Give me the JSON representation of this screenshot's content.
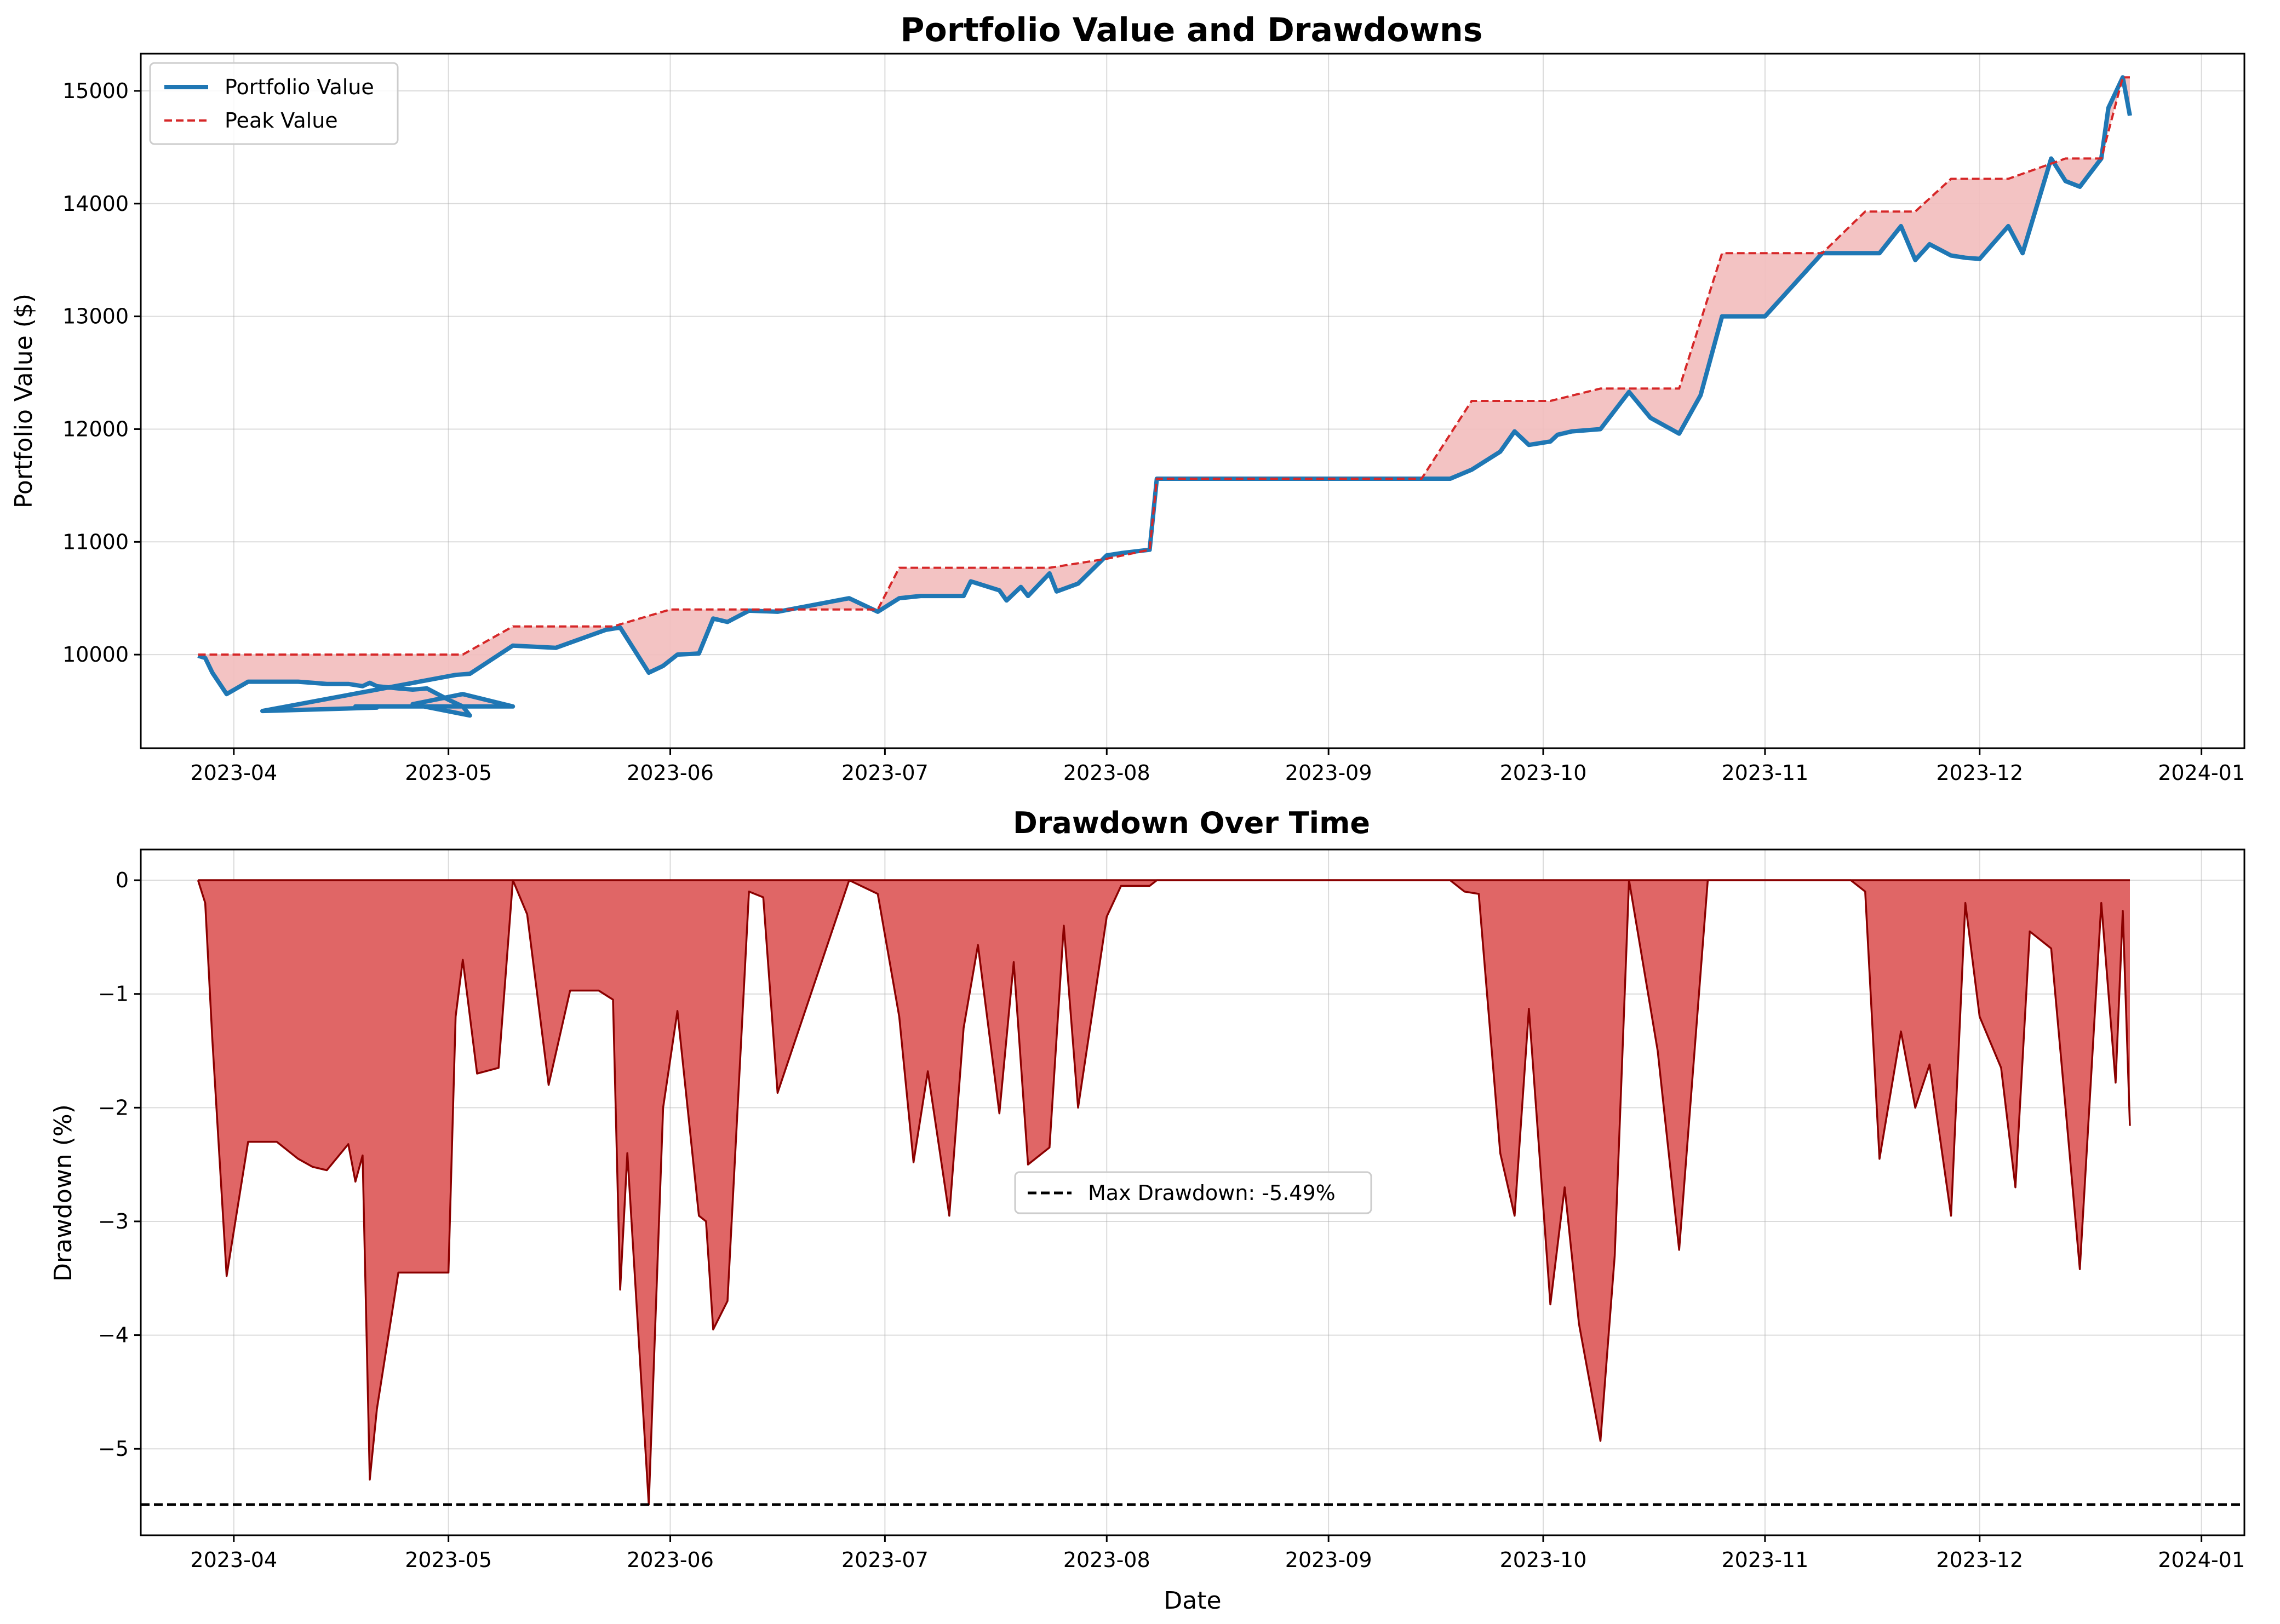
{
  "chart_data": [
    {
      "type": "line",
      "title": "Portfolio Value and Drawdowns",
      "xlabel": "",
      "ylabel": "Portfolio Value ($)",
      "x_ticks": [
        "2023-04",
        "2023-05",
        "2023-06",
        "2023-07",
        "2023-08",
        "2023-09",
        "2023-10",
        "2023-11",
        "2023-12",
        "2024-01"
      ],
      "y_ticks": [
        "10000",
        "11000",
        "12000",
        "13000",
        "14000",
        "15000"
      ],
      "xlim": [
        "2023-03-19",
        "2024-01-07"
      ],
      "ylim": [
        9170,
        15330
      ],
      "grid": true,
      "legend_position": "top-left",
      "legend": [
        "Portfolio Value",
        "Peak Value"
      ],
      "colors": {
        "portfolio": "#1f77b4",
        "peak": "#d62728",
        "fill": "#f2bcbc"
      },
      "series": [
        {
          "name": "Portfolio Value",
          "x": [
            "2023-03-27",
            "2023-03-28",
            "2023-03-29",
            "2023-03-31",
            "2023-04-03",
            "2023-04-05",
            "2023-04-07",
            "2023-04-10",
            "2023-04-12",
            "2023-04-14",
            "2023-04-17",
            "2023-04-18",
            "2023-04-19",
            "2023-04-20",
            "2023-04-21",
            "2023-04-24",
            "2023-04-26",
            "2023-04-28",
            "2023-05-01",
            "2023-05-03",
            "2023-05-04",
            "2023-04-26",
            "2023-05-03",
            "2023-05-10",
            "2023-04-18",
            "2023-04-21",
            "2023-04-05",
            "2023-05-02",
            "2023-05-04",
            "2023-05-10",
            "2023-05-16",
            "2023-05-23",
            "2023-05-25",
            "2023-05-29",
            "2023-05-31",
            "2023-06-02",
            "2023-06-05",
            "2023-06-07",
            "2023-06-09",
            "2023-06-12",
            "2023-06-16",
            "2023-06-26",
            "2023-06-30",
            "2023-07-03",
            "2023-07-06",
            "2023-07-10",
            "2023-07-12",
            "2023-07-13",
            "2023-07-17",
            "2023-07-18",
            "2023-07-20",
            "2023-07-21",
            "2023-07-24",
            "2023-07-25",
            "2023-07-28",
            "2023-08-01",
            "2023-08-03",
            "2023-08-07",
            "2023-08-08",
            "2023-08-17",
            "2023-08-24",
            "2023-09-07",
            "2023-09-14",
            "2023-09-18",
            "2023-09-21",
            "2023-09-25",
            "2023-09-27",
            "2023-09-28",
            "2023-09-29",
            "2023-10-02",
            "2023-10-03",
            "2023-10-05",
            "2023-10-09",
            "2023-10-13",
            "2023-10-16",
            "2023-10-20",
            "2023-10-23",
            "2023-10-26",
            "2023-11-01",
            "2023-11-09",
            "2023-11-13",
            "2023-11-15",
            "2023-11-17",
            "2023-11-20",
            "2023-11-22",
            "2023-11-24",
            "2023-11-27",
            "2023-11-29",
            "2023-12-01",
            "2023-12-05",
            "2023-12-07",
            "2023-12-11",
            "2023-12-13",
            "2023-12-15",
            "2023-12-18",
            "2023-12-19",
            "2023-12-21",
            "2023-12-22"
          ],
          "values": [
            9990,
            9970,
            9840,
            9650,
            9760,
            9760,
            9760,
            9760,
            9750,
            9740,
            9740,
            9730,
            9720,
            9750,
            9720,
            9700,
            9690,
            9700,
            9600,
            9540,
            9460,
            9560,
            9650,
            9540,
            9540,
            9530,
            9500,
            9820,
            9830,
            10080,
            10060,
            10220,
            10240,
            9840,
            9900,
            10000,
            10010,
            10320,
            10290,
            10390,
            10380,
            10500,
            10380,
            10500,
            10520,
            10520,
            10520,
            10650,
            10570,
            10480,
            10600,
            10520,
            10720,
            10560,
            10630,
            10880,
            10900,
            10930,
            11560,
            11560,
            11560,
            11560,
            11560,
            11560,
            11640,
            11800,
            11980,
            11920,
            11860,
            11890,
            11950,
            11980,
            12000,
            12330,
            12100,
            11960,
            12300,
            13000,
            13000,
            13560,
            13560,
            13560,
            13560,
            13800,
            13500,
            13640,
            13540,
            13520,
            13510,
            13800,
            13560,
            14400,
            14200,
            14150,
            14400,
            14850,
            15120,
            14780
          ]
        },
        {
          "name": "Peak Value",
          "x": [
            "2023-03-27",
            "2023-05-03",
            "2023-05-10",
            "2023-05-24",
            "2023-06-01",
            "2023-06-10",
            "2023-06-30",
            "2023-07-03",
            "2023-07-24",
            "2023-08-01",
            "2023-08-07",
            "2023-08-08",
            "2023-09-14",
            "2023-09-21",
            "2023-10-02",
            "2023-10-09",
            "2023-10-13",
            "2023-10-20",
            "2023-10-26",
            "2023-11-09",
            "2023-11-15",
            "2023-11-22",
            "2023-11-27",
            "2023-12-05",
            "2023-12-13",
            "2023-12-18",
            "2023-12-21",
            "2023-12-22"
          ],
          "values": [
            10000,
            10000,
            10250,
            10250,
            10400,
            10400,
            10400,
            10770,
            10770,
            10850,
            10930,
            11560,
            11560,
            12250,
            12250,
            12360,
            12360,
            12360,
            13560,
            13560,
            13930,
            13930,
            14220,
            14220,
            14400,
            14400,
            15120,
            15120
          ]
        }
      ]
    },
    {
      "type": "area",
      "title": "Drawdown Over Time",
      "xlabel": "Date",
      "ylabel": "Drawdown (%)",
      "x_ticks": [
        "2023-04",
        "2023-05",
        "2023-06",
        "2023-07",
        "2023-08",
        "2023-09",
        "2023-10",
        "2023-11",
        "2023-12",
        "2024-01"
      ],
      "y_ticks": [
        "0",
        "−1",
        "−2",
        "−3",
        "−4",
        "−5"
      ],
      "xlim": [
        "2023-03-19",
        "2024-01-07"
      ],
      "ylim": [
        -5.76,
        0.27
      ],
      "grid": true,
      "legend_position": "center",
      "legend": [
        "Max Drawdown: -5.49%"
      ],
      "max_drawdown": -5.49,
      "colors": {
        "area": "#e06666",
        "edge": "#8b0000",
        "max_line": "#000000"
      },
      "series": [
        {
          "name": "",
          "x": [
            "2023-03-27",
            "2023-03-28",
            "2023-03-29",
            "2023-03-31",
            "2023-04-03",
            "2023-04-05",
            "2023-04-07",
            "2023-04-10",
            "2023-04-12",
            "2023-04-14",
            "2023-04-17",
            "2023-04-18",
            "2023-04-19",
            "2023-04-20",
            "2023-04-21",
            "2023-04-24",
            "2023-04-26",
            "2023-04-28",
            "2023-05-01",
            "2023-05-02",
            "2023-05-03",
            "2023-05-05",
            "2023-05-08",
            "2023-05-10",
            "2023-05-12",
            "2023-05-15",
            "2023-05-18",
            "2023-05-22",
            "2023-05-24",
            "2023-05-25",
            "2023-05-26",
            "2023-05-29",
            "2023-05-31",
            "2023-06-02",
            "2023-06-05",
            "2023-06-06",
            "2023-06-07",
            "2023-06-09",
            "2023-06-12",
            "2023-06-14",
            "2023-06-16",
            "2023-06-26",
            "2023-06-30",
            "2023-07-03",
            "2023-07-05",
            "2023-07-07",
            "2023-07-10",
            "2023-07-12",
            "2023-07-14",
            "2023-07-17",
            "2023-07-19",
            "2023-07-21",
            "2023-07-24",
            "2023-07-26",
            "2023-07-28",
            "2023-08-01",
            "2023-08-03",
            "2023-08-07",
            "2023-08-08",
            "2023-09-14",
            "2023-09-18",
            "2023-09-20",
            "2023-09-22",
            "2023-09-25",
            "2023-09-27",
            "2023-09-29",
            "2023-10-02",
            "2023-10-04",
            "2023-10-06",
            "2023-10-09",
            "2023-10-11",
            "2023-10-13",
            "2023-10-17",
            "2023-10-20",
            "2023-10-24",
            "2023-11-09",
            "2023-11-13",
            "2023-11-15",
            "2023-11-17",
            "2023-11-20",
            "2023-11-22",
            "2023-11-24",
            "2023-11-27",
            "2023-11-29",
            "2023-12-01",
            "2023-12-04",
            "2023-12-06",
            "2023-12-08",
            "2023-12-11",
            "2023-12-13",
            "2023-12-15",
            "2023-12-18",
            "2023-12-20",
            "2023-12-21",
            "2023-12-22"
          ],
          "values": [
            0,
            -0.2,
            -1.4,
            -3.48,
            -2.3,
            -2.3,
            -2.3,
            -2.45,
            -2.52,
            -2.55,
            -2.32,
            -2.65,
            -2.42,
            -5.27,
            -4.65,
            -3.45,
            -3.45,
            -3.45,
            -3.45,
            -1.2,
            -0.7,
            -1.7,
            -1.65,
            0,
            -0.3,
            -1.8,
            -0.97,
            -0.97,
            -1.05,
            -3.6,
            -2.4,
            -5.49,
            -2.0,
            -1.15,
            -2.95,
            -3.0,
            -3.95,
            -3.7,
            -0.1,
            -0.15,
            -1.87,
            0,
            -0.12,
            -1.2,
            -2.48,
            -1.68,
            -2.95,
            -1.3,
            -0.57,
            -2.05,
            -0.72,
            -2.5,
            -2.35,
            -0.4,
            -2.0,
            -0.32,
            -0.05,
            -0.05,
            0,
            0,
            0,
            -0.1,
            -0.12,
            -2.4,
            -2.95,
            -1.13,
            -3.73,
            -2.7,
            -3.9,
            -4.93,
            -3.3,
            0,
            -1.5,
            -3.25,
            0,
            0,
            0,
            -0.1,
            -2.45,
            -1.33,
            -2.0,
            -1.62,
            -2.95,
            -0.2,
            -1.2,
            -1.65,
            -2.7,
            -0.45,
            -0.6,
            -2.0,
            -3.42,
            -0.2,
            -1.78,
            -0.27,
            -2.16
          ]
        }
      ]
    }
  ]
}
